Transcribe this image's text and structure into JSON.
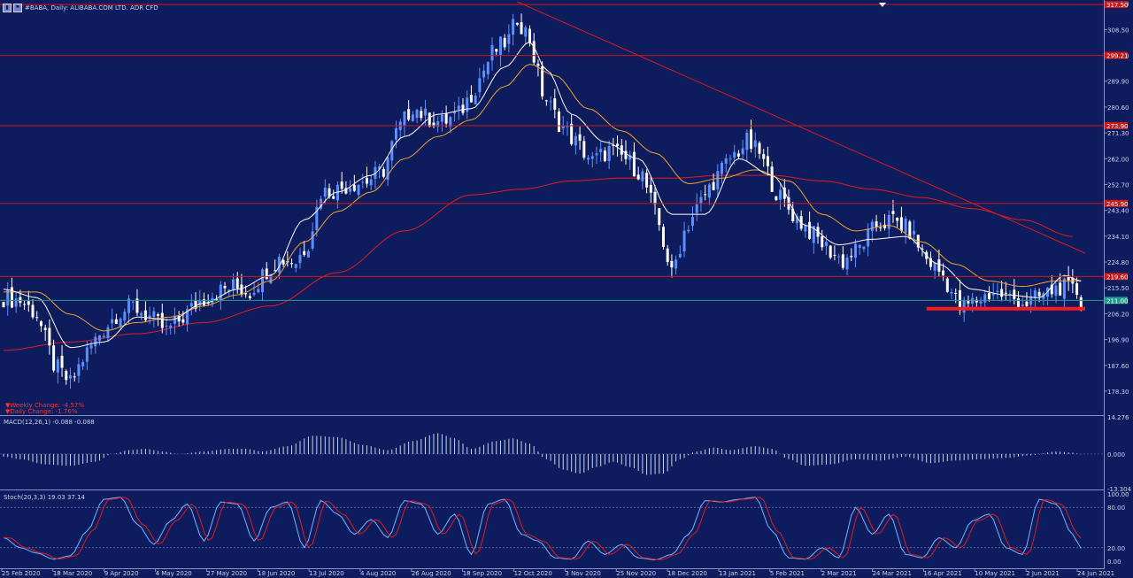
{
  "header": {
    "title": "#BABA, Daily:  ALIBABA.COM LTD. ADR CFD",
    "icons": [
      "chart-mode-icon",
      "flag-icon"
    ]
  },
  "changes": {
    "weekly": "Weekly Change: -4.57%",
    "daily": "Daily Change: -1.76%"
  },
  "chart_data": [
    {
      "type": "candlestick",
      "title": "#BABA, Daily:  ALIBABA.COM LTD. ADR CFD",
      "ylim": [
        170,
        318.5
      ],
      "yticks": [
        {
          "v": 317.8,
          "label": "317.80"
        },
        {
          "v": 308.5,
          "label": "308.50"
        },
        {
          "v": 299.2,
          "label": "299.20"
        },
        {
          "v": 289.9,
          "label": "289.90"
        },
        {
          "v": 280.6,
          "label": "280.60"
        },
        {
          "v": 271.3,
          "label": "271.30"
        },
        {
          "v": 262.0,
          "label": "262.00"
        },
        {
          "v": 252.7,
          "label": "252.70"
        },
        {
          "v": 243.4,
          "label": "243.40"
        },
        {
          "v": 234.1,
          "label": "234.10"
        },
        {
          "v": 224.8,
          "label": "224.80"
        },
        {
          "v": 215.5,
          "label": "215.50"
        },
        {
          "v": 206.2,
          "label": "206.20"
        },
        {
          "v": 196.9,
          "label": "196.90"
        },
        {
          "v": 187.6,
          "label": "187.60"
        },
        {
          "v": 178.3,
          "label": "178.30"
        }
      ],
      "xticks": [
        "25 Feb 2020",
        "18 Mar 2020",
        "9 Apr 2020",
        "4 May 2020",
        "27 May 2020",
        "18 Jun 2020",
        "13 Jul 2020",
        "4 Aug 2020",
        "26 Aug 2020",
        "18 Sep 2020",
        "12 Oct 2020",
        "3 Nov 2020",
        "25 Nov 2020",
        "18 Dec 2020",
        "13 Jan 2021",
        "5 Feb 2021",
        "2 Mar 2021",
        "24 Mar 2021",
        "16 Apr 2021",
        "10 May 2021",
        "2 Jun 2021",
        "24 Jun 2021"
      ],
      "close_series": [
        [
          0,
          212
        ],
        [
          4,
          211
        ],
        [
          8,
          206
        ],
        [
          12,
          188
        ],
        [
          16,
          181
        ],
        [
          19,
          190
        ],
        [
          23,
          199
        ],
        [
          27,
          206
        ],
        [
          31,
          209
        ],
        [
          35,
          205
        ],
        [
          39,
          200
        ],
        [
          43,
          205
        ],
        [
          47,
          211
        ],
        [
          51,
          214
        ],
        [
          55,
          216
        ],
        [
          59,
          214
        ],
        [
          63,
          222
        ],
        [
          66,
          226
        ],
        [
          70,
          225
        ],
        [
          73,
          232
        ],
        [
          76,
          250
        ],
        [
          80,
          251
        ],
        [
          83,
          253
        ],
        [
          87,
          254
        ],
        [
          91,
          258
        ],
        [
          94,
          271
        ],
        [
          98,
          281
        ],
        [
          101,
          277
        ],
        [
          105,
          275
        ],
        [
          109,
          278
        ],
        [
          113,
          288
        ],
        [
          117,
          300
        ],
        [
          121,
          305
        ],
        [
          123,
          313
        ],
        [
          126,
          305
        ],
        [
          129,
          286
        ],
        [
          133,
          275
        ],
        [
          137,
          268
        ],
        [
          141,
          261
        ],
        [
          145,
          265
        ],
        [
          149,
          262
        ],
        [
          153,
          256
        ],
        [
          157,
          238
        ],
        [
          160,
          220
        ],
        [
          163,
          236
        ],
        [
          166,
          244
        ],
        [
          170,
          254
        ],
        [
          174,
          262
        ],
        [
          178,
          268
        ],
        [
          181,
          264
        ],
        [
          185,
          250
        ],
        [
          189,
          242
        ],
        [
          193,
          236
        ],
        [
          197,
          230
        ],
        [
          201,
          225
        ],
        [
          205,
          230
        ],
        [
          209,
          238
        ],
        [
          213,
          240
        ],
        [
          217,
          236
        ],
        [
          221,
          226
        ],
        [
          225,
          220
        ],
        [
          229,
          208
        ],
        [
          233,
          211
        ],
        [
          237,
          214
        ],
        [
          241,
          212
        ],
        [
          245,
          210
        ],
        [
          249,
          213
        ],
        [
          253,
          216
        ],
        [
          257,
          214
        ],
        [
          258,
          210
        ]
      ],
      "ma_white": [
        [
          0,
          215
        ],
        [
          8,
          212
        ],
        [
          16,
          194
        ],
        [
          24,
          196
        ],
        [
          32,
          205
        ],
        [
          40,
          204
        ],
        [
          48,
          210
        ],
        [
          56,
          215
        ],
        [
          64,
          220
        ],
        [
          72,
          240
        ],
        [
          80,
          250
        ],
        [
          88,
          256
        ],
        [
          96,
          270
        ],
        [
          104,
          278
        ],
        [
          112,
          280
        ],
        [
          120,
          295
        ],
        [
          126,
          304
        ],
        [
          130,
          294
        ],
        [
          136,
          278
        ],
        [
          144,
          268
        ],
        [
          152,
          262
        ],
        [
          160,
          242
        ],
        [
          168,
          242
        ],
        [
          176,
          262
        ],
        [
          184,
          256
        ],
        [
          192,
          238
        ],
        [
          200,
          231
        ],
        [
          208,
          233
        ],
        [
          216,
          234
        ],
        [
          224,
          224
        ],
        [
          232,
          215
        ],
        [
          240,
          213
        ],
        [
          248,
          212
        ],
        [
          254,
          220
        ],
        [
          258,
          218
        ]
      ],
      "ma_orange": [
        [
          0,
          214
        ],
        [
          8,
          214
        ],
        [
          16,
          206
        ],
        [
          24,
          200
        ],
        [
          32,
          203
        ],
        [
          40,
          205
        ],
        [
          48,
          209
        ],
        [
          56,
          213
        ],
        [
          64,
          218
        ],
        [
          72,
          232
        ],
        [
          80,
          243
        ],
        [
          88,
          250
        ],
        [
          96,
          262
        ],
        [
          104,
          270
        ],
        [
          112,
          276
        ],
        [
          120,
          288
        ],
        [
          126,
          296
        ],
        [
          132,
          292
        ],
        [
          140,
          280
        ],
        [
          148,
          272
        ],
        [
          156,
          264
        ],
        [
          164,
          253
        ],
        [
          172,
          255
        ],
        [
          180,
          258
        ],
        [
          188,
          254
        ],
        [
          196,
          242
        ],
        [
          204,
          236
        ],
        [
          212,
          238
        ],
        [
          220,
          232
        ],
        [
          228,
          224
        ],
        [
          236,
          218
        ],
        [
          244,
          216
        ],
        [
          252,
          218
        ],
        [
          258,
          218
        ]
      ],
      "ma_red": [
        [
          0,
          193
        ],
        [
          16,
          196
        ],
        [
          32,
          199
        ],
        [
          48,
          203
        ],
        [
          64,
          209
        ],
        [
          80,
          221
        ],
        [
          96,
          236
        ],
        [
          112,
          249
        ],
        [
          124,
          251
        ],
        [
          136,
          254
        ],
        [
          148,
          255
        ],
        [
          160,
          255
        ],
        [
          172,
          256
        ],
        [
          184,
          256
        ],
        [
          196,
          254
        ],
        [
          208,
          251
        ],
        [
          220,
          248
        ],
        [
          232,
          244
        ],
        [
          244,
          240
        ],
        [
          256,
          234
        ]
      ],
      "trendline": [
        [
          123,
          318.5
        ],
        [
          259,
          228
        ]
      ],
      "h_lines": [
        {
          "v": 317.5,
          "label": "317.50",
          "color": "#d21515"
        },
        {
          "v": 299.2,
          "label": "299.21",
          "color": "#d21515"
        },
        {
          "v": 273.9,
          "label": "273.90",
          "color": "#d21515"
        },
        {
          "v": 245.9,
          "label": "245.90",
          "color": "#d21515"
        },
        {
          "v": 219.6,
          "label": "219.60",
          "color": "#d21515"
        }
      ],
      "support_line": {
        "v": 208.0,
        "x": [
          221,
          259
        ],
        "color": "#ff1a1a"
      },
      "current_price": {
        "v": 211.0,
        "label": "211.00",
        "color": "#1a9e8a"
      },
      "colors": {
        "bull": "#5b8fff",
        "bear": "#ffffff",
        "ma_white": "#ffffff",
        "ma_orange": "#f2a22c",
        "ma_red": "#e21b1b"
      }
    },
    {
      "type": "bar",
      "title": "MACD(12,26,1) -0.088 -0.088",
      "ylim": [
        -13.304,
        14.276
      ],
      "yticks": [
        {
          "v": 14.276,
          "label": "14.276"
        },
        {
          "v": 0,
          "label": "0.000"
        },
        {
          "v": -13.304,
          "label": "-13.304"
        }
      ],
      "values_knots": [
        [
          0,
          -1
        ],
        [
          4,
          -2
        ],
        [
          10,
          -4
        ],
        [
          16,
          -4.5
        ],
        [
          22,
          -3
        ],
        [
          26,
          0
        ],
        [
          30,
          1.5
        ],
        [
          34,
          2
        ],
        [
          38,
          1
        ],
        [
          42,
          0
        ],
        [
          48,
          1
        ],
        [
          54,
          2
        ],
        [
          58,
          2
        ],
        [
          62,
          1
        ],
        [
          68,
          3
        ],
        [
          74,
          7
        ],
        [
          80,
          6.5
        ],
        [
          86,
          3.5
        ],
        [
          92,
          1.5
        ],
        [
          98,
          5
        ],
        [
          104,
          8
        ],
        [
          108,
          6
        ],
        [
          112,
          2
        ],
        [
          118,
          5
        ],
        [
          122,
          6
        ],
        [
          126,
          4
        ],
        [
          130,
          -2
        ],
        [
          134,
          -6
        ],
        [
          138,
          -7.5
        ],
        [
          142,
          -5
        ],
        [
          146,
          -3
        ],
        [
          150,
          -5
        ],
        [
          154,
          -8
        ],
        [
          158,
          -7.5
        ],
        [
          162,
          -2
        ],
        [
          166,
          1
        ],
        [
          170,
          2.5
        ],
        [
          174,
          1.5
        ],
        [
          180,
          3
        ],
        [
          184,
          2
        ],
        [
          188,
          -2
        ],
        [
          192,
          -4.5
        ],
        [
          198,
          -4
        ],
        [
          204,
          -2
        ],
        [
          210,
          -2.5
        ],
        [
          216,
          -1
        ],
        [
          222,
          -3.5
        ],
        [
          228,
          -2.5
        ],
        [
          234,
          -2
        ],
        [
          240,
          -1.5
        ],
        [
          246,
          -0.5
        ],
        [
          252,
          1
        ],
        [
          256,
          0.5
        ],
        [
          258,
          -0.088
        ]
      ]
    },
    {
      "type": "line",
      "title": "Stoch(20,3,3) 19.03 37.14",
      "ylim": [
        0,
        100
      ],
      "yticks": [
        {
          "v": 100,
          "label": "100.00"
        },
        {
          "v": 80,
          "label": "80.00"
        },
        {
          "v": 20,
          "label": "20.00"
        },
        {
          "v": 0,
          "label": "0.00"
        }
      ],
      "levels": [
        80,
        20
      ],
      "k_knots": [
        [
          0,
          35
        ],
        [
          4,
          20
        ],
        [
          8,
          12
        ],
        [
          12,
          3
        ],
        [
          16,
          8
        ],
        [
          20,
          45
        ],
        [
          24,
          92
        ],
        [
          28,
          95
        ],
        [
          32,
          55
        ],
        [
          36,
          25
        ],
        [
          40,
          60
        ],
        [
          44,
          85
        ],
        [
          48,
          30
        ],
        [
          52,
          88
        ],
        [
          56,
          85
        ],
        [
          60,
          30
        ],
        [
          64,
          80
        ],
        [
          68,
          88
        ],
        [
          72,
          20
        ],
        [
          76,
          90
        ],
        [
          80,
          70
        ],
        [
          84,
          40
        ],
        [
          88,
          62
        ],
        [
          92,
          35
        ],
        [
          96,
          90
        ],
        [
          100,
          85
        ],
        [
          104,
          40
        ],
        [
          108,
          70
        ],
        [
          112,
          10
        ],
        [
          116,
          85
        ],
        [
          120,
          92
        ],
        [
          124,
          40
        ],
        [
          128,
          30
        ],
        [
          132,
          5
        ],
        [
          136,
          3
        ],
        [
          140,
          30
        ],
        [
          144,
          10
        ],
        [
          148,
          25
        ],
        [
          152,
          5
        ],
        [
          156,
          2
        ],
        [
          160,
          10
        ],
        [
          164,
          40
        ],
        [
          168,
          90
        ],
        [
          172,
          88
        ],
        [
          176,
          92
        ],
        [
          180,
          95
        ],
        [
          184,
          45
        ],
        [
          188,
          5
        ],
        [
          192,
          3
        ],
        [
          196,
          20
        ],
        [
          200,
          5
        ],
        [
          204,
          80
        ],
        [
          208,
          40
        ],
        [
          212,
          70
        ],
        [
          216,
          10
        ],
        [
          220,
          5
        ],
        [
          224,
          35
        ],
        [
          228,
          20
        ],
        [
          232,
          60
        ],
        [
          236,
          70
        ],
        [
          240,
          20
        ],
        [
          244,
          10
        ],
        [
          248,
          92
        ],
        [
          252,
          85
        ],
        [
          256,
          40
        ],
        [
          258,
          19
        ]
      ],
      "d_lag": 1.3,
      "final": {
        "k": 19.03,
        "d": 37.14
      }
    }
  ]
}
